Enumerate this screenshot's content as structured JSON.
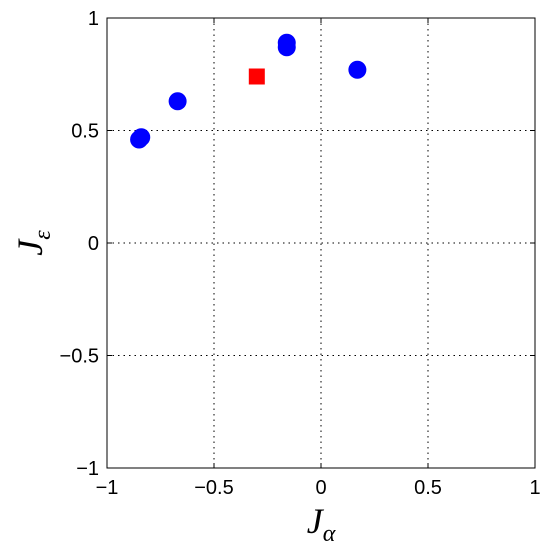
{
  "chart_data": {
    "type": "scatter",
    "title": "",
    "xlabel": {
      "main": "J",
      "sub": "α"
    },
    "ylabel": {
      "main": "J",
      "sub": "ε"
    },
    "xlim": [
      -1,
      1
    ],
    "ylim": [
      -1,
      1
    ],
    "grid": true,
    "xticks": [
      -1,
      -0.5,
      0,
      0.5,
      1
    ],
    "xtick_labels": [
      "−1",
      "−0.5",
      "0",
      "0.5",
      "1"
    ],
    "yticks": [
      -1,
      -0.5,
      0,
      0.5,
      1
    ],
    "ytick_labels": [
      "−1",
      "−0.5",
      "0",
      "0.5",
      "1"
    ],
    "series": [
      {
        "marker": "circle",
        "color": "#0000ff",
        "points": [
          {
            "x": -0.85,
            "y": 0.46
          },
          {
            "x": -0.84,
            "y": 0.47
          },
          {
            "x": -0.67,
            "y": 0.63
          },
          {
            "x": -0.16,
            "y": 0.87
          },
          {
            "x": -0.16,
            "y": 0.89
          },
          {
            "x": 0.17,
            "y": 0.77
          }
        ]
      },
      {
        "marker": "square",
        "color": "#ff0000",
        "points": [
          {
            "x": -0.3,
            "y": 0.74
          }
        ]
      }
    ]
  }
}
